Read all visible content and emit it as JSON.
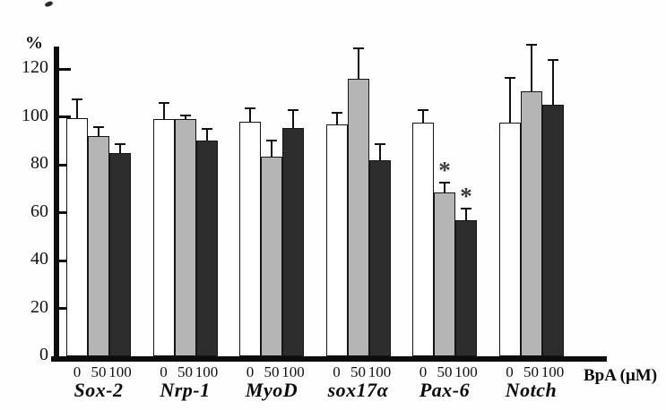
{
  "figure": {
    "background": "#fefefe",
    "axis_color": "#0d0d0d",
    "bar_border_color": "#151515",
    "significance_color": "#3a3a3a"
  },
  "chart_data": {
    "type": "bar",
    "title": "",
    "ylabel": "%",
    "xlabel": "BpA (μM)",
    "ylim": [
      0,
      130
    ],
    "yticks": [
      0,
      20,
      40,
      60,
      80,
      100,
      120
    ],
    "grid": false,
    "legend_position": "none",
    "error_bars": "upper",
    "categories": [
      "Sox-2",
      "Nrp-1",
      "MyoD",
      "sox17α",
      "Pax-6",
      "Notch"
    ],
    "dose_labels": [
      "0",
      "50",
      "100"
    ],
    "series": [
      {
        "name": "BpA 0 μM",
        "fill": "#ffffff",
        "values": [
          99.5,
          99,
          98,
          97,
          97.5,
          97.5
        ],
        "errors": [
          8,
          7,
          6,
          5,
          5.5,
          19
        ]
      },
      {
        "name": "BpA 50 μM",
        "fill": "#b5b5b5",
        "values": [
          92,
          99,
          83.5,
          116,
          68.5,
          110.5
        ],
        "errors": [
          4,
          2,
          7,
          13,
          4.5,
          20
        ]
      },
      {
        "name": "BpA 100 μM",
        "fill": "#2d2d2d",
        "values": [
          85,
          90,
          95.5,
          82,
          57,
          105
        ],
        "errors": [
          4,
          5.5,
          7.5,
          7,
          5,
          19
        ]
      }
    ],
    "significance": [
      {
        "category": "Pax-6",
        "dose": "50",
        "marker": "*"
      },
      {
        "category": "Pax-6",
        "dose": "100",
        "marker": "*"
      }
    ]
  }
}
